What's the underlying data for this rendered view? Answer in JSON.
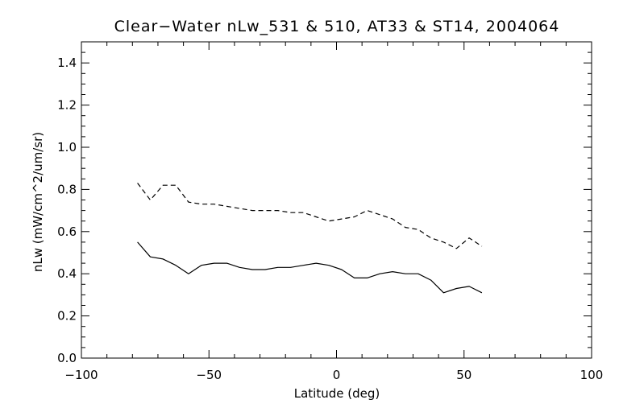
{
  "chart_data": {
    "type": "line",
    "title": "Clear−Water nLw_531 & 510, AT33 & ST14, 2004064",
    "xlabel": "Latitude (deg)",
    "ylabel": "nLw (mW/cm^2/um/sr)",
    "xlim": [
      -100,
      100
    ],
    "ylim": [
      0.0,
      1.5
    ],
    "x_ticks": [
      -100,
      -50,
      0,
      50,
      100
    ],
    "x_tick_labels": [
      "−100",
      "−50",
      "0",
      "50",
      "100"
    ],
    "y_ticks": [
      0.0,
      0.2,
      0.4,
      0.6,
      0.8,
      1.0,
      1.2,
      1.4
    ],
    "y_tick_labels": [
      "0.0",
      "0.2",
      "0.4",
      "0.6",
      "0.8",
      "1.0",
      "1.2",
      "1.4"
    ],
    "grid": false,
    "legend": "none",
    "series": [
      {
        "style": "dashed",
        "color": "#000000",
        "x": [
          -78,
          -73,
          -68,
          -63,
          -58,
          -53,
          -48,
          -43,
          -38,
          -33,
          -28,
          -23,
          -18,
          -13,
          -8,
          -3,
          2,
          7,
          12,
          17,
          22,
          27,
          32,
          37,
          42,
          47,
          52,
          57
        ],
        "y": [
          0.83,
          0.75,
          0.82,
          0.82,
          0.74,
          0.73,
          0.73,
          0.72,
          0.71,
          0.7,
          0.7,
          0.7,
          0.69,
          0.69,
          0.67,
          0.65,
          0.66,
          0.67,
          0.7,
          0.68,
          0.66,
          0.62,
          0.61,
          0.57,
          0.55,
          0.52,
          0.57,
          0.53
        ]
      },
      {
        "style": "solid",
        "color": "#000000",
        "x": [
          -78,
          -73,
          -68,
          -63,
          -58,
          -53,
          -48,
          -43,
          -38,
          -33,
          -28,
          -23,
          -18,
          -13,
          -8,
          -3,
          2,
          7,
          12,
          17,
          22,
          27,
          32,
          37,
          42,
          47,
          52,
          57
        ],
        "y": [
          0.55,
          0.48,
          0.47,
          0.44,
          0.4,
          0.44,
          0.45,
          0.45,
          0.43,
          0.42,
          0.42,
          0.43,
          0.43,
          0.44,
          0.45,
          0.44,
          0.42,
          0.38,
          0.38,
          0.4,
          0.41,
          0.4,
          0.4,
          0.37,
          0.31,
          0.33,
          0.34,
          0.31
        ]
      }
    ]
  }
}
